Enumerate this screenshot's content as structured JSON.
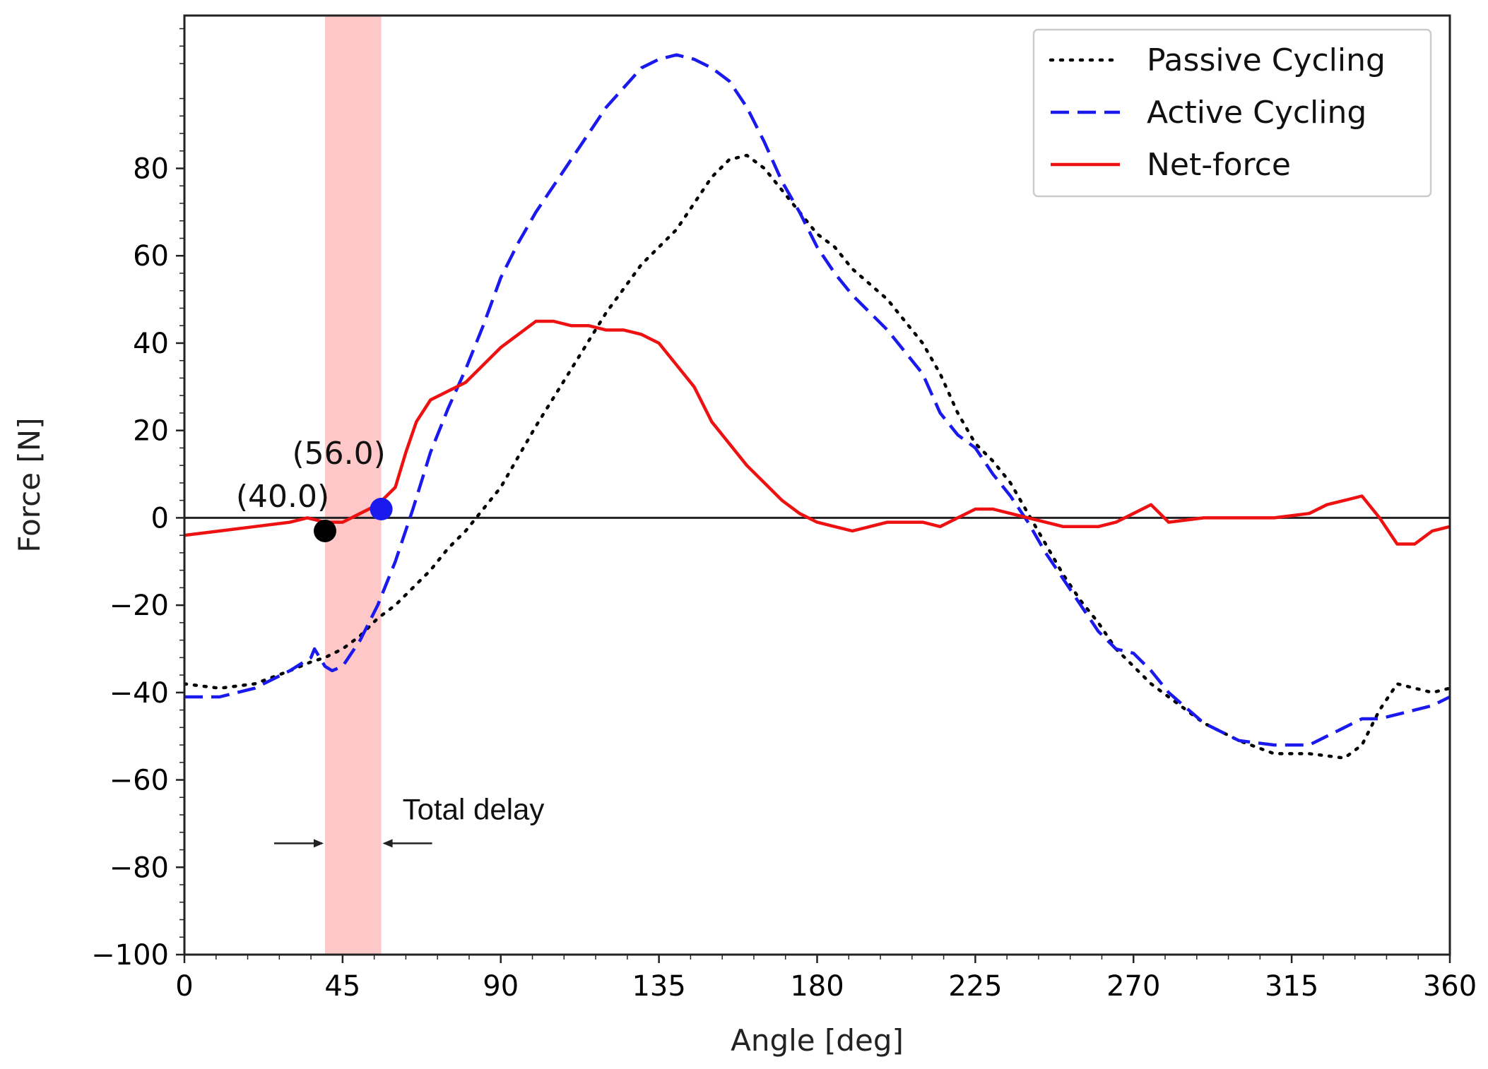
{
  "chart_data": {
    "type": "line",
    "title": "",
    "xlabel": "Angle [deg]",
    "ylabel": "Force [N]",
    "xlim": [
      0,
      360
    ],
    "ylim": [
      -100,
      115
    ],
    "xticks": [
      0,
      45,
      90,
      135,
      180,
      225,
      270,
      315,
      360
    ],
    "yticks": [
      -100,
      -80,
      -60,
      -40,
      -20,
      0,
      20,
      40,
      60,
      80
    ],
    "ytick_labels": [
      "−100",
      "−80",
      "−60",
      "−40",
      "−20",
      "0",
      "20",
      "40",
      "60",
      "80"
    ],
    "grid": false,
    "legend_position": "top-right",
    "series": [
      {
        "name": "Passive Cycling",
        "style": "dotted",
        "color": "#000000",
        "x": [
          0,
          10,
          20,
          30,
          36,
          40,
          45,
          50,
          55,
          60,
          65,
          70,
          75,
          80,
          85,
          90,
          95,
          100,
          110,
          120,
          130,
          140,
          145,
          150,
          155,
          160,
          165,
          170,
          175,
          180,
          185,
          190,
          200,
          210,
          215,
          220,
          225,
          230,
          235,
          240,
          245,
          250,
          255,
          260,
          265,
          270,
          275,
          280,
          290,
          300,
          310,
          320,
          330,
          335,
          340,
          345,
          350,
          355,
          360
        ],
        "y": [
          -38,
          -39,
          -38,
          -35,
          -33,
          -32,
          -30,
          -27,
          -23,
          -20,
          -16,
          -12,
          -7,
          -3,
          2,
          7,
          14,
          21,
          34,
          47,
          58,
          66,
          72,
          78,
          82,
          83,
          80,
          75,
          70,
          65,
          62,
          57,
          50,
          40,
          33,
          24,
          17,
          13,
          8,
          1,
          -6,
          -13,
          -19,
          -24,
          -30,
          -34,
          -38,
          -41,
          -47,
          -51,
          -54,
          -54,
          -55,
          -52,
          -44,
          -38,
          -39,
          -40,
          -39
        ]
      },
      {
        "name": "Active Cycling",
        "style": "dashed",
        "color": "#1a1aee",
        "x": [
          0,
          10,
          20,
          30,
          36,
          37,
          40,
          42,
          45,
          50,
          55,
          60,
          65,
          70,
          75,
          80,
          85,
          90,
          95,
          100,
          110,
          120,
          130,
          135,
          140,
          145,
          150,
          155,
          160,
          165,
          170,
          175,
          180,
          185,
          190,
          200,
          210,
          215,
          220,
          225,
          230,
          235,
          240,
          245,
          250,
          255,
          260,
          265,
          270,
          275,
          280,
          290,
          300,
          310,
          320,
          325,
          330,
          335,
          340,
          345,
          350,
          355,
          360
        ],
        "y": [
          -41,
          -41,
          -39,
          -35,
          -32,
          -30,
          -34,
          -35,
          -34,
          -28,
          -20,
          -10,
          2,
          15,
          25,
          34,
          44,
          55,
          63,
          70,
          82,
          94,
          103,
          105,
          106,
          105,
          103,
          100,
          94,
          86,
          77,
          70,
          62,
          56,
          51,
          43,
          33,
          24,
          19,
          16,
          10,
          5,
          -1,
          -8,
          -14,
          -20,
          -26,
          -30,
          -31,
          -35,
          -40,
          -47,
          -51,
          -52,
          -52,
          -50,
          -48,
          -46,
          -46,
          -45,
          -44,
          -43,
          -41
        ]
      },
      {
        "name": "Net-force",
        "style": "solid",
        "color": "#ee1111",
        "x": [
          0,
          10,
          20,
          30,
          35,
          40,
          45,
          50,
          55,
          60,
          63,
          66,
          70,
          75,
          80,
          85,
          90,
          95,
          100,
          105,
          110,
          115,
          120,
          125,
          130,
          135,
          140,
          145,
          150,
          160,
          170,
          175,
          180,
          185,
          190,
          195,
          200,
          205,
          210,
          215,
          220,
          225,
          230,
          235,
          240,
          245,
          250,
          255,
          260,
          265,
          270,
          275,
          280,
          290,
          300,
          310,
          320,
          325,
          330,
          335,
          340,
          345,
          350,
          355,
          360
        ],
        "y": [
          -4,
          -3,
          -2,
          -1,
          0,
          -1,
          -1,
          1,
          3,
          7,
          15,
          22,
          27,
          29,
          31,
          35,
          39,
          42,
          45,
          45,
          44,
          44,
          43,
          43,
          42,
          40,
          35,
          30,
          22,
          12,
          4,
          1,
          -1,
          -2,
          -3,
          -2,
          -1,
          -1,
          -1,
          -2,
          0,
          2,
          2,
          1,
          0,
          -1,
          -2,
          -2,
          -2,
          -1,
          1,
          3,
          -1,
          0,
          0,
          0,
          1,
          3,
          4,
          5,
          0,
          -6,
          -6,
          -3,
          -2
        ]
      }
    ],
    "highlight_band": {
      "x_start": 40,
      "x_end": 56,
      "color": "#ffc8c8"
    },
    "markers": [
      {
        "x": 40,
        "y": -3,
        "label": "(40.0)",
        "color": "#000000"
      },
      {
        "x": 56,
        "y": 2,
        "label": "(56.0)",
        "color": "#1a1aee"
      }
    ],
    "annotations": [
      {
        "text": "Total delay",
        "x_start": 40,
        "x_end": 56,
        "y": -70
      }
    ],
    "zero_line": true
  }
}
